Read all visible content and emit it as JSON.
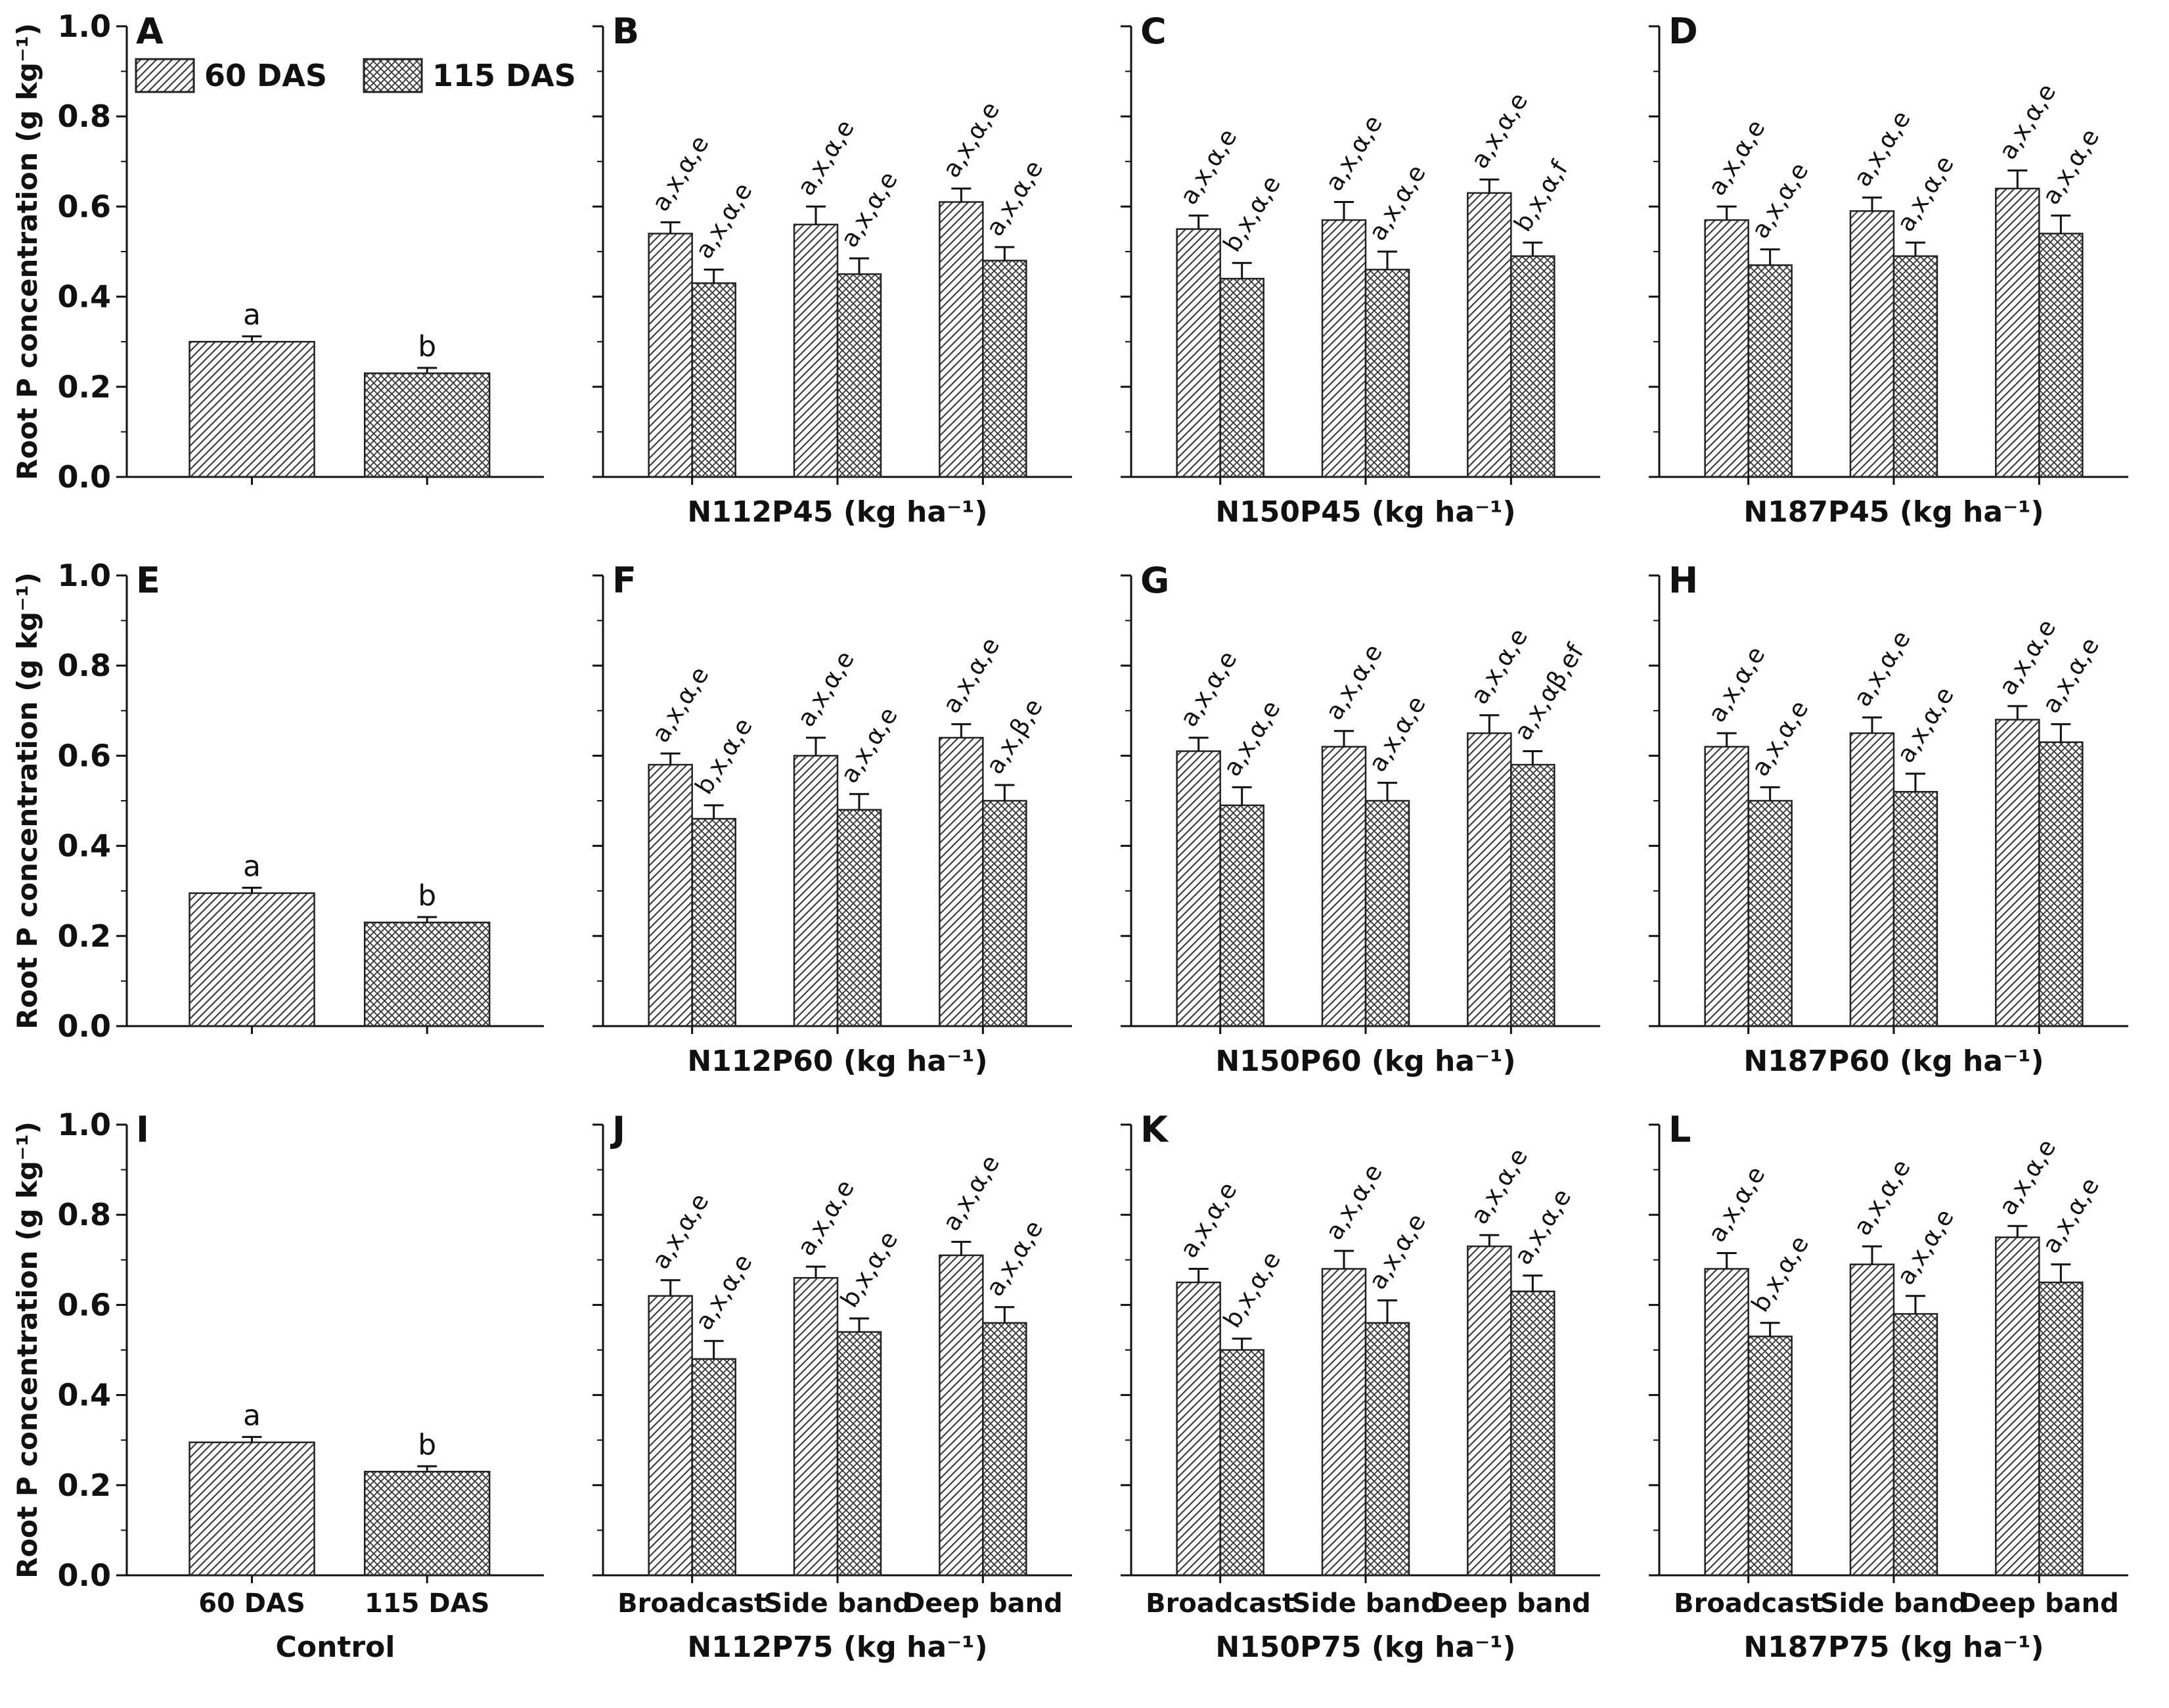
{
  "figure": {
    "type": "bar",
    "grid": "3 rows x 4 columns, shared y-axis per row",
    "ylabel": "Root P concentration (g kg⁻¹)",
    "ylim": [
      0.0,
      1.0
    ],
    "yticks": [
      "0.0",
      "0.2",
      "0.4",
      "0.6",
      "0.8",
      "1.0"
    ],
    "legend": {
      "position": "top-left",
      "items": [
        {
          "label": "60 DAS",
          "pattern": "diagonal-hatch"
        },
        {
          "label": "115 DAS",
          "pattern": "cross-hatch"
        }
      ]
    },
    "colors": {
      "ink": "#111111",
      "hatch": "#3c3c3c",
      "bar_fill": "#ffffff",
      "background": "#ffffff"
    }
  },
  "chart_data": [
    {
      "panel": "A",
      "type": "bar",
      "kind": "control",
      "categories": [
        "60 DAS",
        "115 DAS"
      ],
      "bars": [
        {
          "series": "60 DAS",
          "value": 0.3,
          "error": 0.012,
          "label": "a"
        },
        {
          "series": "115 DAS",
          "value": 0.23,
          "error": 0.012,
          "label": "b"
        }
      ]
    },
    {
      "panel": "B",
      "type": "bar",
      "kind": "treatment",
      "xlabel": "N112P45 (kg ha⁻¹)",
      "categories": [
        "Broadcast",
        "Side band",
        "Deep band"
      ],
      "series": [
        {
          "name": "60 DAS",
          "values": [
            0.54,
            0.56,
            0.61
          ],
          "errors": [
            0.025,
            0.04,
            0.03
          ],
          "labels": [
            "a,x,α,e",
            "a,x,α,e",
            "a,x,α,e"
          ]
        },
        {
          "name": "115 DAS",
          "values": [
            0.43,
            0.45,
            0.48
          ],
          "errors": [
            0.03,
            0.035,
            0.03
          ],
          "labels": [
            "a,x,α,e",
            "a,x,α,e",
            "a,x,α,e"
          ]
        }
      ]
    },
    {
      "panel": "C",
      "type": "bar",
      "kind": "treatment",
      "xlabel": "N150P45 (kg ha⁻¹)",
      "categories": [
        "Broadcast",
        "Side band",
        "Deep band"
      ],
      "series": [
        {
          "name": "60 DAS",
          "values": [
            0.55,
            0.57,
            0.63
          ],
          "errors": [
            0.03,
            0.04,
            0.03
          ],
          "labels": [
            "a,x,α,e",
            "a,x,α,e",
            "a,x,α,e"
          ]
        },
        {
          "name": "115 DAS",
          "values": [
            0.44,
            0.46,
            0.49
          ],
          "errors": [
            0.035,
            0.04,
            0.03
          ],
          "labels": [
            "b,x,α,e",
            "a,x,α,e",
            "b,x,α,f"
          ]
        }
      ]
    },
    {
      "panel": "D",
      "type": "bar",
      "kind": "treatment",
      "xlabel": "N187P45 (kg ha⁻¹)",
      "categories": [
        "Broadcast",
        "Side band",
        "Deep band"
      ],
      "series": [
        {
          "name": "60 DAS",
          "values": [
            0.57,
            0.59,
            0.64
          ],
          "errors": [
            0.03,
            0.03,
            0.04
          ],
          "labels": [
            "a,x,α,e",
            "a,x,α,e",
            "a,x,α,e"
          ]
        },
        {
          "name": "115 DAS",
          "values": [
            0.47,
            0.49,
            0.54
          ],
          "errors": [
            0.035,
            0.03,
            0.04
          ],
          "labels": [
            "a,x,α,e",
            "a,x,α,e",
            "a,x,α,e"
          ]
        }
      ]
    },
    {
      "panel": "E",
      "type": "bar",
      "kind": "control",
      "categories": [
        "60 DAS",
        "115 DAS"
      ],
      "bars": [
        {
          "series": "60 DAS",
          "value": 0.295,
          "error": 0.012,
          "label": "a"
        },
        {
          "series": "115 DAS",
          "value": 0.23,
          "error": 0.012,
          "label": "b"
        }
      ]
    },
    {
      "panel": "F",
      "type": "bar",
      "kind": "treatment",
      "xlabel": "N112P60 (kg ha⁻¹)",
      "categories": [
        "Broadcast",
        "Side band",
        "Deep band"
      ],
      "series": [
        {
          "name": "60 DAS",
          "values": [
            0.58,
            0.6,
            0.64
          ],
          "errors": [
            0.025,
            0.04,
            0.03
          ],
          "labels": [
            "a,x,α,e",
            "a,x,α,e",
            "a,x,α,e"
          ]
        },
        {
          "name": "115 DAS",
          "values": [
            0.46,
            0.48,
            0.5
          ],
          "errors": [
            0.03,
            0.035,
            0.035
          ],
          "labels": [
            "b,x,α,e",
            "a,x,α,e",
            "a,x,β,e"
          ]
        }
      ]
    },
    {
      "panel": "G",
      "type": "bar",
      "kind": "treatment",
      "xlabel": "N150P60 (kg ha⁻¹)",
      "categories": [
        "Broadcast",
        "Side band",
        "Deep band"
      ],
      "series": [
        {
          "name": "60 DAS",
          "values": [
            0.61,
            0.62,
            0.65
          ],
          "errors": [
            0.03,
            0.035,
            0.04
          ],
          "labels": [
            "a,x,α,e",
            "a,x,α,e",
            "a,x,α,e"
          ]
        },
        {
          "name": "115 DAS",
          "values": [
            0.49,
            0.5,
            0.58
          ],
          "errors": [
            0.04,
            0.04,
            0.03
          ],
          "labels": [
            "a,x,α,e",
            "a,x,α,e",
            "a,x,αβ,ef"
          ]
        }
      ]
    },
    {
      "panel": "H",
      "type": "bar",
      "kind": "treatment",
      "xlabel": "N187P60 (kg ha⁻¹)",
      "categories": [
        "Broadcast",
        "Side band",
        "Deep band"
      ],
      "series": [
        {
          "name": "60 DAS",
          "values": [
            0.62,
            0.65,
            0.68
          ],
          "errors": [
            0.03,
            0.035,
            0.03
          ],
          "labels": [
            "a,x,α,e",
            "a,x,α,e",
            "a,x,α,e"
          ]
        },
        {
          "name": "115 DAS",
          "values": [
            0.5,
            0.52,
            0.63
          ],
          "errors": [
            0.03,
            0.04,
            0.04
          ],
          "labels": [
            "a,x,α,e",
            "a,x,α,e",
            "a,x,α,e"
          ]
        }
      ]
    },
    {
      "panel": "I",
      "type": "bar",
      "kind": "control",
      "xlabel": "Control",
      "xticklabels": [
        "60 DAS",
        "115 DAS"
      ],
      "categories": [
        "60 DAS",
        "115 DAS"
      ],
      "bars": [
        {
          "series": "60 DAS",
          "value": 0.295,
          "error": 0.012,
          "label": "a"
        },
        {
          "series": "115 DAS",
          "value": 0.23,
          "error": 0.012,
          "label": "b"
        }
      ]
    },
    {
      "panel": "J",
      "type": "bar",
      "kind": "treatment",
      "xlabel": "N112P75 (kg ha⁻¹)",
      "xticklabels": [
        "Broadcast",
        "Side band",
        "Deep band"
      ],
      "categories": [
        "Broadcast",
        "Side band",
        "Deep band"
      ],
      "series": [
        {
          "name": "60 DAS",
          "values": [
            0.62,
            0.66,
            0.71
          ],
          "errors": [
            0.035,
            0.025,
            0.03
          ],
          "labels": [
            "a,x,α,e",
            "a,x,α,e",
            "a,x,α,e"
          ]
        },
        {
          "name": "115 DAS",
          "values": [
            0.48,
            0.54,
            0.56
          ],
          "errors": [
            0.04,
            0.03,
            0.035
          ],
          "labels": [
            "a,x,α,e",
            "b,x,α,e",
            "a,x,α,e"
          ]
        }
      ]
    },
    {
      "panel": "K",
      "type": "bar",
      "kind": "treatment",
      "xlabel": "N150P75 (kg ha⁻¹)",
      "xticklabels": [
        "Broadcast",
        "Side band",
        "Deep band"
      ],
      "categories": [
        "Broadcast",
        "Side band",
        "Deep band"
      ],
      "series": [
        {
          "name": "60 DAS",
          "values": [
            0.65,
            0.68,
            0.73
          ],
          "errors": [
            0.03,
            0.04,
            0.025
          ],
          "labels": [
            "a,x,α,e",
            "a,x,α,e",
            "a,x,α,e"
          ]
        },
        {
          "name": "115 DAS",
          "values": [
            0.5,
            0.56,
            0.63
          ],
          "errors": [
            0.025,
            0.05,
            0.035
          ],
          "labels": [
            "b,x,α,e",
            "a,x,α,e",
            "a,x,α,e"
          ]
        }
      ]
    },
    {
      "panel": "L",
      "type": "bar",
      "kind": "treatment",
      "xlabel": "N187P75 (kg ha⁻¹)",
      "xticklabels": [
        "Broadcast",
        "Side band",
        "Deep band"
      ],
      "categories": [
        "Broadcast",
        "Side band",
        "Deep band"
      ],
      "series": [
        {
          "name": "60 DAS",
          "values": [
            0.68,
            0.69,
            0.75
          ],
          "errors": [
            0.035,
            0.04,
            0.025
          ],
          "labels": [
            "a,x,α,e",
            "a,x,α,e",
            "a,x,α,e"
          ]
        },
        {
          "name": "115 DAS",
          "values": [
            0.53,
            0.58,
            0.65
          ],
          "errors": [
            0.03,
            0.04,
            0.04
          ],
          "labels": [
            "b,x,α,e",
            "a,x,α,e",
            "a,x,α,e"
          ]
        }
      ]
    }
  ]
}
